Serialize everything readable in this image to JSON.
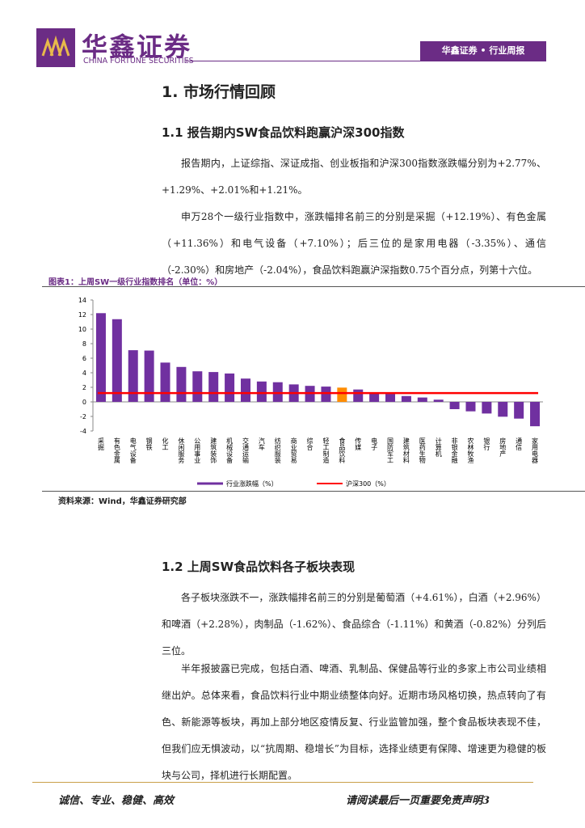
{
  "header": {
    "logo": "华鑫证券",
    "logo_en": "CHINA FORTUNE SECURITIES",
    "tag": "华鑫证券 • 行业周报"
  },
  "section_title": "1. 市场行情回顾",
  "subsections": [
    {
      "title": "1.1 报告期内SW食品饮料跑赢沪深300指数",
      "paragraphs": [
        "报告期内，上证综指、深证成指、创业板指和沪深300指数涨跌幅分别为+2.77%、+1.29%、+2.01%和+1.21%。",
        "申万28个一级行业指数中，涨跌幅排名前三的分别是采掘（+12.19%）、有色金属（+11.36%）和电气设备（+7.10%）；后三位的是家用电器（-3.35%）、通信（-2.30%）和房地产（-2.04%），食品饮料跑赢沪深指数0.75个百分点，列第十六位。"
      ]
    },
    {
      "title": "1.2 上周SW食品饮料各子板块表现",
      "paragraphs": [
        "各子板块涨跌不一，涨跌幅排名前三的分别是葡萄酒（+4.61%），白酒（+2.96%）和啤酒（+2.28%），肉制品（-1.62%）、食品综合（-1.11%）和黄酒（-0.82%）分列后三位。",
        "半年报披露已完成，包括白酒、啤酒、乳制品、保健品等行业的多家上市公司业绩相继出炉。总体来看，食品饮料行业中期业绩整体向好。近期市场风格切换，热点转向了有色、新能源等板块，再加上部分地区疫情反复、行业监管加强，整个食品板块表现不佳，但我们应无惧波动，以“抗周期、稳增长”为目标，选择业绩更有保障、增速更为稳健的板块与公司，择机进行长期配置。"
      ]
    }
  ],
  "figure": {
    "caption": "图表1：上周SW一级行业指数排名（单位：%）",
    "source": "资料来源：Wind，华鑫证券研究部"
  },
  "chart_data": {
    "type": "bar",
    "categories": [
      "采掘",
      "有色金属",
      "电气设备",
      "钢铁",
      "化工",
      "休闲服务",
      "公用事业",
      "建筑装饰",
      "机械设备",
      "交通运输",
      "汽车",
      "纺织服装",
      "商业贸易",
      "综合",
      "轻工制造",
      "食品饮料",
      "传媒",
      "电子",
      "国防军工",
      "建筑材料",
      "医药生物",
      "计算机",
      "非银金融",
      "农林牧渔",
      "银行",
      "房地产",
      "通信",
      "家用电器"
    ],
    "series": [
      {
        "name": "行业涨跌幅（%）",
        "color": "#7030a0",
        "colors": [
          "#7030a0",
          "#7030a0",
          "#7030a0",
          "#7030a0",
          "#7030a0",
          "#7030a0",
          "#7030a0",
          "#7030a0",
          "#7030a0",
          "#7030a0",
          "#7030a0",
          "#7030a0",
          "#7030a0",
          "#7030a0",
          "#7030a0",
          "#ff8c00",
          "#7030a0",
          "#7030a0",
          "#7030a0",
          "#7030a0",
          "#7030a0",
          "#7030a0",
          "#7030a0",
          "#7030a0",
          "#7030a0",
          "#7030a0",
          "#7030a0",
          "#7030a0"
        ],
        "values": [
          12.19,
          11.36,
          7.1,
          7.05,
          5.4,
          4.8,
          4.2,
          4.1,
          3.9,
          3.2,
          2.8,
          2.7,
          2.4,
          2.2,
          2.1,
          1.96,
          1.7,
          1.2,
          1.1,
          0.8,
          0.6,
          0.3,
          -1.0,
          -1.3,
          -1.6,
          -2.04,
          -2.3,
          -3.35
        ]
      }
    ],
    "reference": {
      "name": "沪深300（%）",
      "value": 1.21,
      "color": "#ff0000"
    },
    "ylim": [
      -4,
      14
    ],
    "yticks": [
      -4,
      -2,
      0,
      2,
      4,
      6,
      8,
      10,
      12,
      14
    ],
    "grid": false
  },
  "footer": {
    "motto": "诚信、专业、稳健、高效",
    "notice": "请阅读最后一页重要免责声明",
    "page": "3"
  }
}
